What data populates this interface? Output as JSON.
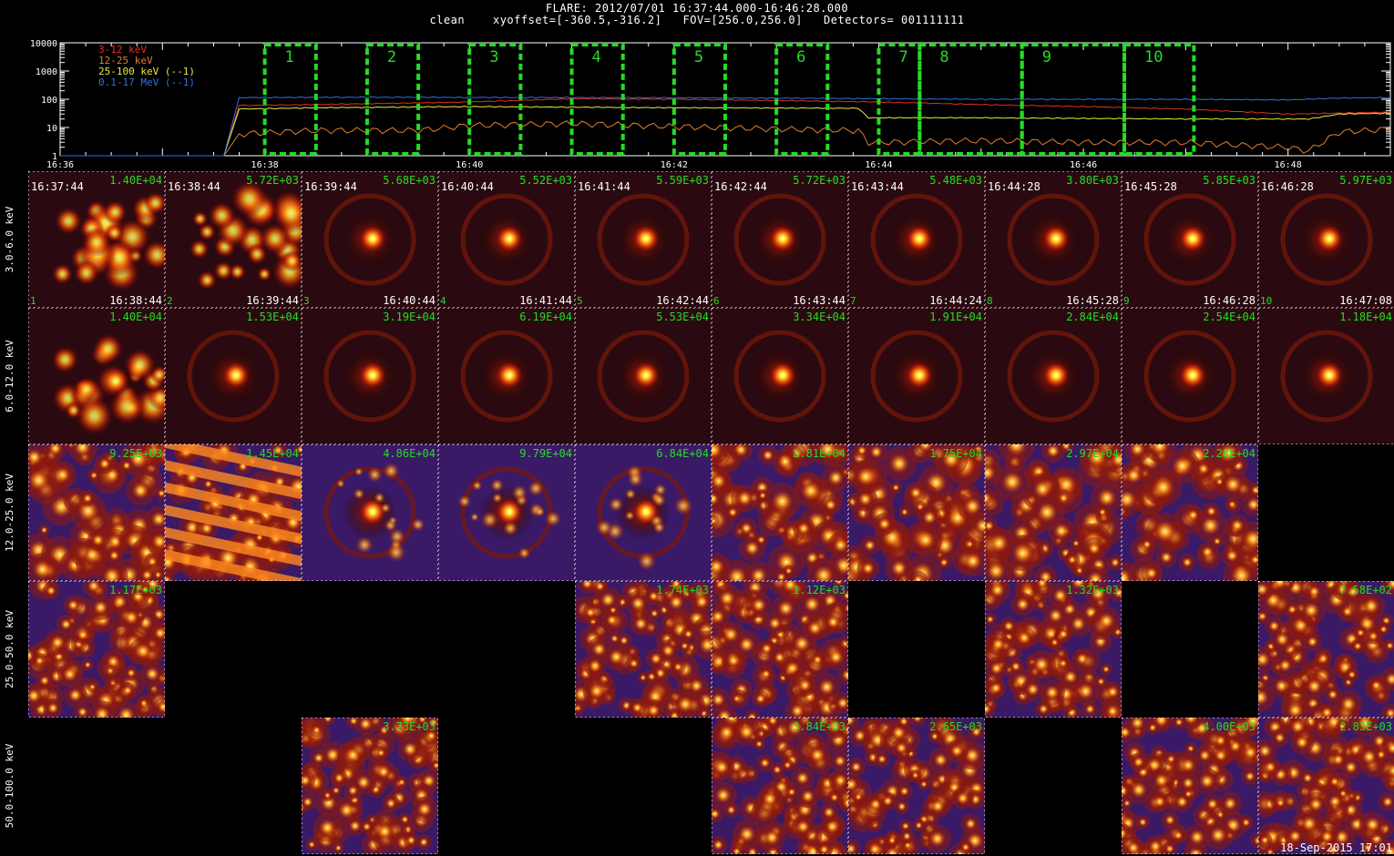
{
  "header": {
    "line1": "FLARE: 2012/07/01 16:37:44.000-16:46:28.000",
    "line2": "clean    xyoffset=[-360.5,-316.2]   FOV=[256.0,256.0]   Detectors= 001111111"
  },
  "colors": {
    "lc_3_12": "#e03020",
    "lc_12_25": "#e08030",
    "lc_25_100": "#e8e840",
    "lc_100_17000": "#3070e0",
    "interval_box": "#22dd22",
    "label_green": "#22dd22",
    "map_low": "#3a1a66",
    "map_high": "#ffff80"
  },
  "chart_data": [
    {
      "type": "line",
      "x_tick_labels": [
        "16:36",
        "16:38",
        "16:40",
        "16:42",
        "16:44",
        "16:46",
        "16:48"
      ],
      "y_tick_labels": [
        "1",
        "10",
        "100",
        "1000",
        "10000"
      ],
      "ylog": true,
      "xlim_minutes": [
        0,
        13
      ],
      "ylim": [
        1,
        10000
      ],
      "series": [
        {
          "name": "3-12 keV",
          "x": [
            0,
            1.6,
            1.75,
            2.5,
            4,
            5,
            6,
            7,
            8,
            9,
            10,
            11,
            12,
            13
          ],
          "values": [
            1,
            1,
            60,
            65,
            80,
            105,
            100,
            90,
            80,
            65,
            55,
            45,
            30,
            35
          ]
        },
        {
          "name": "12-25 keV",
          "x": [
            0,
            1.6,
            1.75,
            2.5,
            3.5,
            4,
            5,
            6,
            7,
            7.8,
            7.9,
            8,
            9,
            10,
            11,
            12,
            12.2,
            12.5,
            13
          ],
          "values": [
            1,
            1,
            6,
            8,
            8,
            12,
            14,
            11,
            9,
            8,
            3,
            3,
            3.5,
            3,
            3,
            2,
            1.5,
            7,
            9
          ]
        },
        {
          "name": "25-100 keV (--1)",
          "x": [
            0,
            1.6,
            1.75,
            2.5,
            4,
            6,
            7.8,
            7.9,
            9,
            11,
            12,
            12.2,
            12.5,
            13
          ],
          "values": [
            1,
            1,
            45,
            50,
            55,
            50,
            48,
            22,
            22,
            20,
            20,
            20,
            30,
            32
          ]
        },
        {
          "name": "0.1-17 MeV (--1)",
          "x": [
            0,
            1.6,
            1.75,
            3,
            5,
            7,
            9,
            11,
            12,
            12.5,
            13
          ],
          "values": [
            1,
            1,
            115,
            118,
            115,
            110,
            100,
            100,
            95,
            110,
            115
          ]
        }
      ],
      "intervals": [
        {
          "label": "1",
          "start": 2.0,
          "end": 2.5
        },
        {
          "label": "2",
          "start": 3.0,
          "end": 3.5
        },
        {
          "label": "3",
          "start": 4.0,
          "end": 4.5
        },
        {
          "label": "4",
          "start": 5.0,
          "end": 5.5
        },
        {
          "label": "5",
          "start": 6.0,
          "end": 6.5
        },
        {
          "label": "6",
          "start": 7.0,
          "end": 7.5
        },
        {
          "label": "7",
          "start": 8.0,
          "end": 8.4
        },
        {
          "label": "8",
          "start": 8.4,
          "end": 9.4
        },
        {
          "label": "9",
          "start": 9.4,
          "end": 10.4
        },
        {
          "label": "10",
          "start": 10.4,
          "end": 11.08
        }
      ]
    },
    {
      "type": "heatmap",
      "energy_bands": [
        "3.0-6.0 keV",
        "6.0-12.0 keV",
        "12.0-25.0 keV",
        "25.0-50.0 keV",
        "50.0-100.0 keV"
      ],
      "time_start": [
        "16:37:44",
        "16:38:44",
        "16:39:44",
        "16:40:44",
        "16:41:44",
        "16:42:44",
        "16:43:44",
        "16:44:28",
        "16:45:28",
        "16:46:28"
      ],
      "time_end": [
        "16:38:44",
        "16:39:44",
        "16:40:44",
        "16:41:44",
        "16:42:44",
        "16:43:44",
        "16:44:24",
        "16:45:28",
        "16:46:28",
        "16:47:08"
      ],
      "interval_numbers": [
        "1",
        "2",
        "3",
        "4",
        "5",
        "6",
        "7",
        "8",
        "9",
        "10"
      ],
      "peak_values": [
        [
          "1.40E+04",
          "5.72E+03",
          "5.68E+03",
          "5.52E+03",
          "5.59E+03",
          "5.72E+03",
          "5.48E+03",
          "3.80E+03",
          "5.85E+03",
          "5.97E+03"
        ],
        [
          "1.40E+04",
          "1.53E+04",
          "3.19E+04",
          "6.19E+04",
          "5.53E+04",
          "3.34E+04",
          "1.91E+04",
          "2.84E+04",
          "2.54E+04",
          "1.18E+04"
        ],
        [
          "9.25E+03",
          "1.45E+04",
          "4.86E+04",
          "9.79E+04",
          "6.84E+04",
          "2.81E+04",
          "1.75E+04",
          "2.97E+04",
          "2.28E+04",
          null
        ],
        [
          "1.17E+03",
          null,
          null,
          null,
          "1.74E+03",
          "1.12E+03",
          null,
          "1.32E+03",
          null,
          "7.58E+02"
        ],
        [
          null,
          null,
          "3.73E+03",
          null,
          null,
          "3.84E+03",
          "2.65E+03",
          null,
          "4.00E+03",
          "2.83E+03"
        ]
      ]
    }
  ],
  "footer": {
    "datestamp": "18-Sep-2015 17:01"
  }
}
